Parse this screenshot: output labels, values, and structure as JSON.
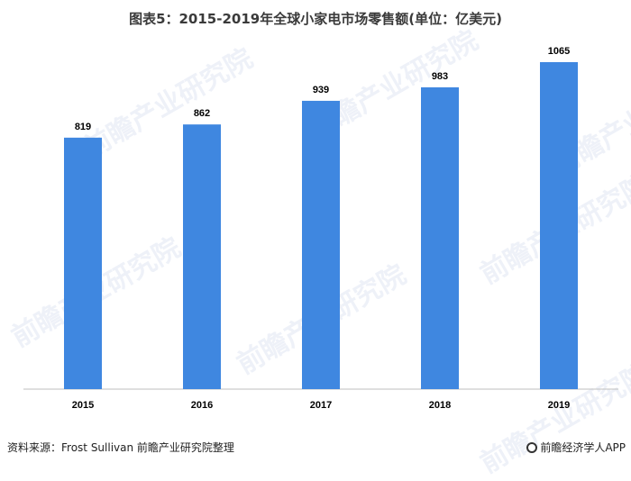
{
  "title": "图表5：2015-2019年全球小家电市场零售额(单位：亿美元)",
  "watermark_text": "前瞻产业研究院",
  "footer": {
    "source": "资料来源：Frost Sullivan 前瞻产业研究院整理",
    "brand": "前瞻经济学人APP"
  },
  "colors": {
    "bar": "#3f87e0",
    "axis": "#bfbfbf"
  },
  "chart_data": {
    "type": "bar",
    "title": "图表5：2015-2019年全球小家电市场零售额(单位：亿美元)",
    "categories": [
      "2015",
      "2016",
      "2017",
      "2018",
      "2019"
    ],
    "values": [
      819,
      862,
      939,
      983,
      1065
    ],
    "data_labels": [
      "819",
      "862",
      "939",
      "983",
      "1065"
    ],
    "xlabel": "",
    "ylabel": "",
    "ylim": [
      0,
      1150
    ],
    "grid": false,
    "legend": "none"
  }
}
